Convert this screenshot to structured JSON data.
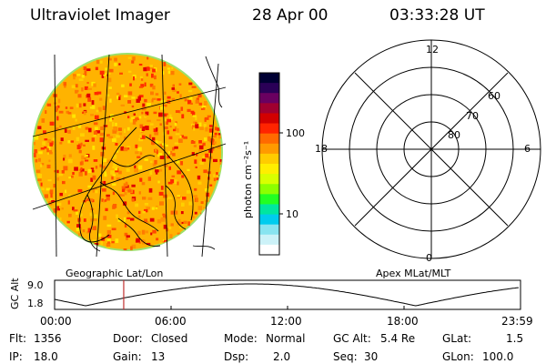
{
  "header": {
    "instrument": "Ultraviolet Imager",
    "date": "28 Apr 00",
    "time": "03:33:28 UT"
  },
  "colorbar": {
    "unit_label": "photon cm⁻²s⁻¹",
    "ticks": [
      "100",
      "10"
    ],
    "colors": [
      "#000033",
      "#2a0057",
      "#6a0060",
      "#a00030",
      "#d20000",
      "#ff2400",
      "#ff6a00",
      "#ff9a00",
      "#ffcc00",
      "#ffee00",
      "#d8ff00",
      "#8cff00",
      "#22ff22",
      "#00e6a0",
      "#00ccee",
      "#88e4f0",
      "#ccf2f8",
      "#ffffff"
    ]
  },
  "left_panel": {
    "label": "Geographic Lat/Lon"
  },
  "right_panel": {
    "label": "Apex MLat/MLT",
    "mlt_labels": {
      "top": "12",
      "left": "18",
      "right": "6",
      "bottom": "0"
    },
    "mlat_labels": [
      "60",
      "70",
      "80"
    ]
  },
  "altitude_plot": {
    "ylabel": "GC Alt",
    "ymax": "9.0",
    "ymin": "1.8",
    "time_ticks": [
      "00:00",
      "06:00",
      "12:00",
      "18:00",
      "23:59"
    ],
    "current_time_hours": 3.56,
    "marker_color": "#c03030"
  },
  "info": {
    "flt": {
      "label": "Flt:",
      "value": "1356"
    },
    "door": {
      "label": "Door:",
      "value": "Closed"
    },
    "mode": {
      "label": "Mode:",
      "value": "Normal"
    },
    "gcalt": {
      "label": "GC Alt:",
      "value": "5.4 Re"
    },
    "glat": {
      "label": "GLat:",
      "value": "1.5"
    },
    "ip": {
      "label": "IP:",
      "value": "18.0"
    },
    "gain": {
      "label": "Gain:",
      "value": "13"
    },
    "dsp": {
      "label": "Dsp:",
      "value": "2.0"
    },
    "seq": {
      "label": "Seq:",
      "value": "30"
    },
    "glon": {
      "label": "GLon:",
      "value": "100.0"
    }
  }
}
